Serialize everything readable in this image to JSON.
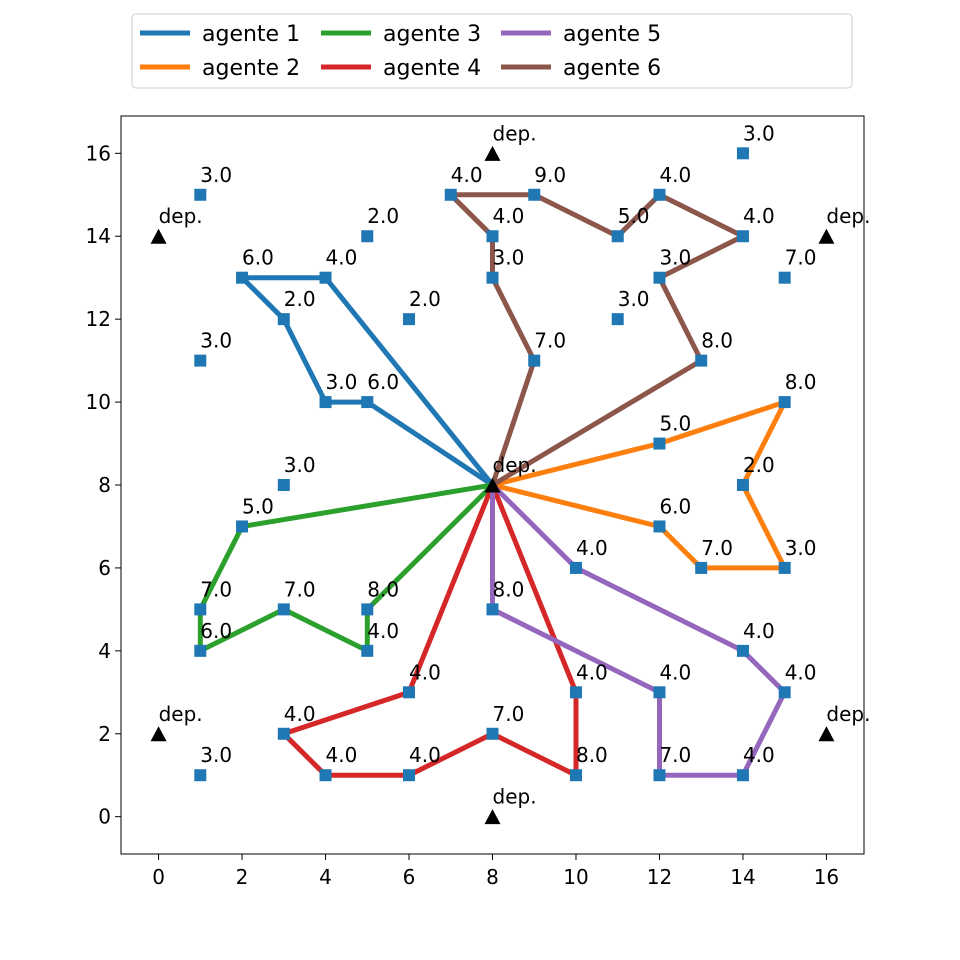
{
  "chart_data": {
    "type": "line",
    "xlim": [
      -0.9,
      16.9
    ],
    "ylim": [
      -0.9,
      16.9
    ],
    "x_ticks": [
      0,
      2,
      4,
      6,
      8,
      10,
      12,
      14,
      16
    ],
    "y_ticks": [
      0,
      2,
      4,
      6,
      8,
      10,
      12,
      14,
      16
    ],
    "grid": false,
    "legend_position": "top-center, outside plot, 4 columns",
    "series": [
      {
        "name": "agente 1",
        "color": "#1f77b4",
        "points": [
          [
            8,
            8
          ],
          [
            5,
            10
          ],
          [
            4,
            10
          ],
          [
            3,
            12
          ],
          [
            2,
            13
          ],
          [
            4,
            13
          ],
          [
            8,
            8
          ]
        ]
      },
      {
        "name": "agente 2",
        "color": "#ff7f0e",
        "points": [
          [
            8,
            8
          ],
          [
            12,
            7
          ],
          [
            13,
            6
          ],
          [
            15,
            6
          ],
          [
            14,
            8
          ],
          [
            15,
            10
          ],
          [
            12,
            9
          ],
          [
            8,
            8
          ]
        ]
      },
      {
        "name": "agente 3",
        "color": "#2ca02c",
        "points": [
          [
            8,
            8
          ],
          [
            5,
            5
          ],
          [
            5,
            4
          ],
          [
            3,
            5
          ],
          [
            1,
            4
          ],
          [
            1,
            5
          ],
          [
            2,
            7
          ],
          [
            8,
            8
          ]
        ]
      },
      {
        "name": "agente 4",
        "color": "#d62728",
        "points": [
          [
            8,
            8
          ],
          [
            6,
            3
          ],
          [
            3,
            2
          ],
          [
            4,
            1
          ],
          [
            6,
            1
          ],
          [
            8,
            2
          ],
          [
            10,
            1
          ],
          [
            10,
            3
          ],
          [
            8,
            8
          ]
        ]
      },
      {
        "name": "agente 5",
        "color": "#9467bd",
        "points": [
          [
            8,
            8
          ],
          [
            10,
            6
          ],
          [
            14,
            4
          ],
          [
            15,
            3
          ],
          [
            14,
            1
          ],
          [
            12,
            1
          ],
          [
            12,
            3
          ],
          [
            8,
            5
          ],
          [
            8,
            8
          ]
        ]
      },
      {
        "name": "agente 6",
        "color": "#8c564b",
        "points": [
          [
            8,
            8
          ],
          [
            13,
            11
          ],
          [
            12,
            13
          ],
          [
            14,
            14
          ],
          [
            12,
            15
          ],
          [
            11,
            14
          ],
          [
            9,
            15
          ],
          [
            7,
            15
          ],
          [
            8,
            14
          ],
          [
            8,
            13
          ],
          [
            9,
            11
          ],
          [
            8,
            8
          ]
        ]
      }
    ],
    "customers": [
      {
        "x": 1,
        "y": 15,
        "label": "3.0"
      },
      {
        "x": 1,
        "y": 11,
        "label": "3.0"
      },
      {
        "x": 1,
        "y": 5,
        "label": "7.0"
      },
      {
        "x": 1,
        "y": 4,
        "label": "6.0"
      },
      {
        "x": 1,
        "y": 1,
        "label": "3.0"
      },
      {
        "x": 2,
        "y": 13,
        "label": "6.0"
      },
      {
        "x": 2,
        "y": 7,
        "label": "5.0"
      },
      {
        "x": 3,
        "y": 12,
        "label": "2.0"
      },
      {
        "x": 3,
        "y": 8,
        "label": "3.0"
      },
      {
        "x": 3,
        "y": 5,
        "label": "7.0"
      },
      {
        "x": 3,
        "y": 2,
        "label": "4.0"
      },
      {
        "x": 4,
        "y": 13,
        "label": "4.0"
      },
      {
        "x": 4,
        "y": 10,
        "label": "3.0"
      },
      {
        "x": 4,
        "y": 1,
        "label": "4.0"
      },
      {
        "x": 5,
        "y": 14,
        "label": "2.0"
      },
      {
        "x": 5,
        "y": 10,
        "label": "6.0"
      },
      {
        "x": 5,
        "y": 5,
        "label": "8.0"
      },
      {
        "x": 5,
        "y": 4,
        "label": "4.0"
      },
      {
        "x": 6,
        "y": 12,
        "label": "2.0"
      },
      {
        "x": 6,
        "y": 3,
        "label": "4.0"
      },
      {
        "x": 6,
        "y": 1,
        "label": "4.0"
      },
      {
        "x": 7,
        "y": 15,
        "label": "4.0"
      },
      {
        "x": 8,
        "y": 14,
        "label": "4.0"
      },
      {
        "x": 8,
        "y": 13,
        "label": "3.0"
      },
      {
        "x": 8,
        "y": 5,
        "label": "8.0"
      },
      {
        "x": 8,
        "y": 2,
        "label": "7.0"
      },
      {
        "x": 9,
        "y": 15,
        "label": "9.0"
      },
      {
        "x": 9,
        "y": 11,
        "label": "7.0"
      },
      {
        "x": 10,
        "y": 6,
        "label": "4.0"
      },
      {
        "x": 10,
        "y": 3,
        "label": "4.0"
      },
      {
        "x": 10,
        "y": 1,
        "label": "8.0"
      },
      {
        "x": 11,
        "y": 14,
        "label": "5.0"
      },
      {
        "x": 11,
        "y": 12,
        "label": "3.0"
      },
      {
        "x": 12,
        "y": 15,
        "label": "4.0"
      },
      {
        "x": 12,
        "y": 13,
        "label": "3.0"
      },
      {
        "x": 12,
        "y": 9,
        "label": "5.0"
      },
      {
        "x": 12,
        "y": 7,
        "label": "6.0"
      },
      {
        "x": 12,
        "y": 3,
        "label": "4.0"
      },
      {
        "x": 12,
        "y": 1,
        "label": "7.0"
      },
      {
        "x": 13,
        "y": 11,
        "label": "8.0"
      },
      {
        "x": 13,
        "y": 6,
        "label": "7.0"
      },
      {
        "x": 14,
        "y": 16,
        "label": "3.0"
      },
      {
        "x": 14,
        "y": 14,
        "label": "4.0"
      },
      {
        "x": 14,
        "y": 8,
        "label": "2.0"
      },
      {
        "x": 14,
        "y": 4,
        "label": "4.0"
      },
      {
        "x": 14,
        "y": 1,
        "label": "4.0"
      },
      {
        "x": 15,
        "y": 13,
        "label": "7.0"
      },
      {
        "x": 15,
        "y": 10,
        "label": "8.0"
      },
      {
        "x": 15,
        "y": 6,
        "label": "3.0"
      },
      {
        "x": 15,
        "y": 3,
        "label": "4.0"
      }
    ],
    "customer_color": "#1f77b4",
    "depots": [
      {
        "x": 8,
        "y": 16,
        "label": "dep."
      },
      {
        "x": 0,
        "y": 14,
        "label": "dep."
      },
      {
        "x": 16,
        "y": 14,
        "label": "dep."
      },
      {
        "x": 8,
        "y": 8,
        "label": "dep."
      },
      {
        "x": 0,
        "y": 2,
        "label": "dep."
      },
      {
        "x": 16,
        "y": 2,
        "label": "dep."
      },
      {
        "x": 8,
        "y": 0,
        "label": "dep."
      }
    ],
    "depot_color": "#000000"
  }
}
